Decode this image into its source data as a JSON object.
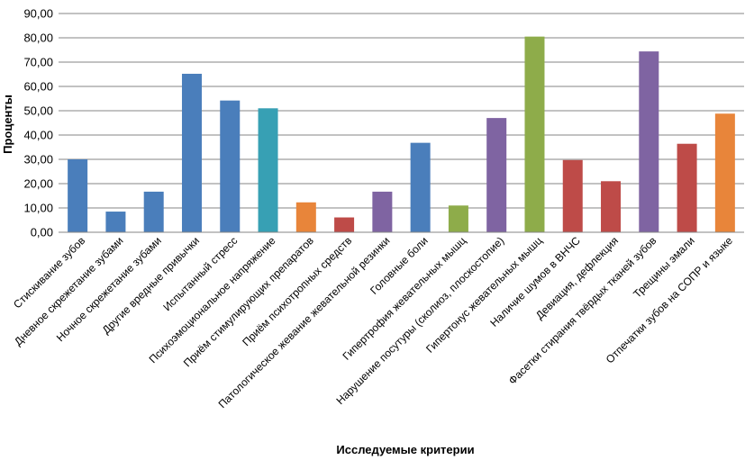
{
  "chart_data": {
    "type": "bar",
    "title": "",
    "xlabel": "Исследуемые критерии",
    "ylabel": "Проценты",
    "ylim": [
      0,
      90
    ],
    "yticks": [
      "0,00",
      "10,00",
      "20,00",
      "30,00",
      "40,00",
      "50,00",
      "60,00",
      "70,00",
      "80,00",
      "90,00"
    ],
    "grid": true,
    "legend": "none",
    "categories": [
      "Стискивание зубов",
      "Дневное скрежетание зубами",
      "Ночное скрежетание зубами",
      "Другие вредные привычки",
      "Испытанный стресс",
      "Психоэмоциональное напряжение",
      "Приём стимулирующих препаратов",
      "Приём психотропных средств",
      "Патологическое жевание жевательной резинки",
      "Головные боли",
      "Гипертрофия жевательных мышц",
      "Нарушение посутуры (сколиоз, плоскостопие)",
      "Гипертонус жевательных мышц",
      "Наличие шумов в ВНЧС",
      "Девиация, дефлекция",
      "Фасетки стирания твёрдых тканей зубов",
      "Трещины эмали",
      "Отпечатки зубов на СОПР и языке"
    ],
    "values": [
      30,
      8.5,
      16.7,
      65.2,
      54.2,
      51,
      12.3,
      6.1,
      16.7,
      36.8,
      11,
      47,
      80.5,
      29.7,
      21,
      74.4,
      36.4,
      48.8
    ],
    "colors": [
      "#4a7ebb",
      "#4a7ebb",
      "#4a7ebb",
      "#4a7ebb",
      "#4a7ebb",
      "#37a0b4",
      "#e8853a",
      "#be4b48",
      "#7f64a2",
      "#4a7ebb",
      "#8eac4a",
      "#7f64a2",
      "#8eac4a",
      "#be4b48",
      "#be4b48",
      "#7f64a2",
      "#be4b48",
      "#e8853a"
    ]
  }
}
